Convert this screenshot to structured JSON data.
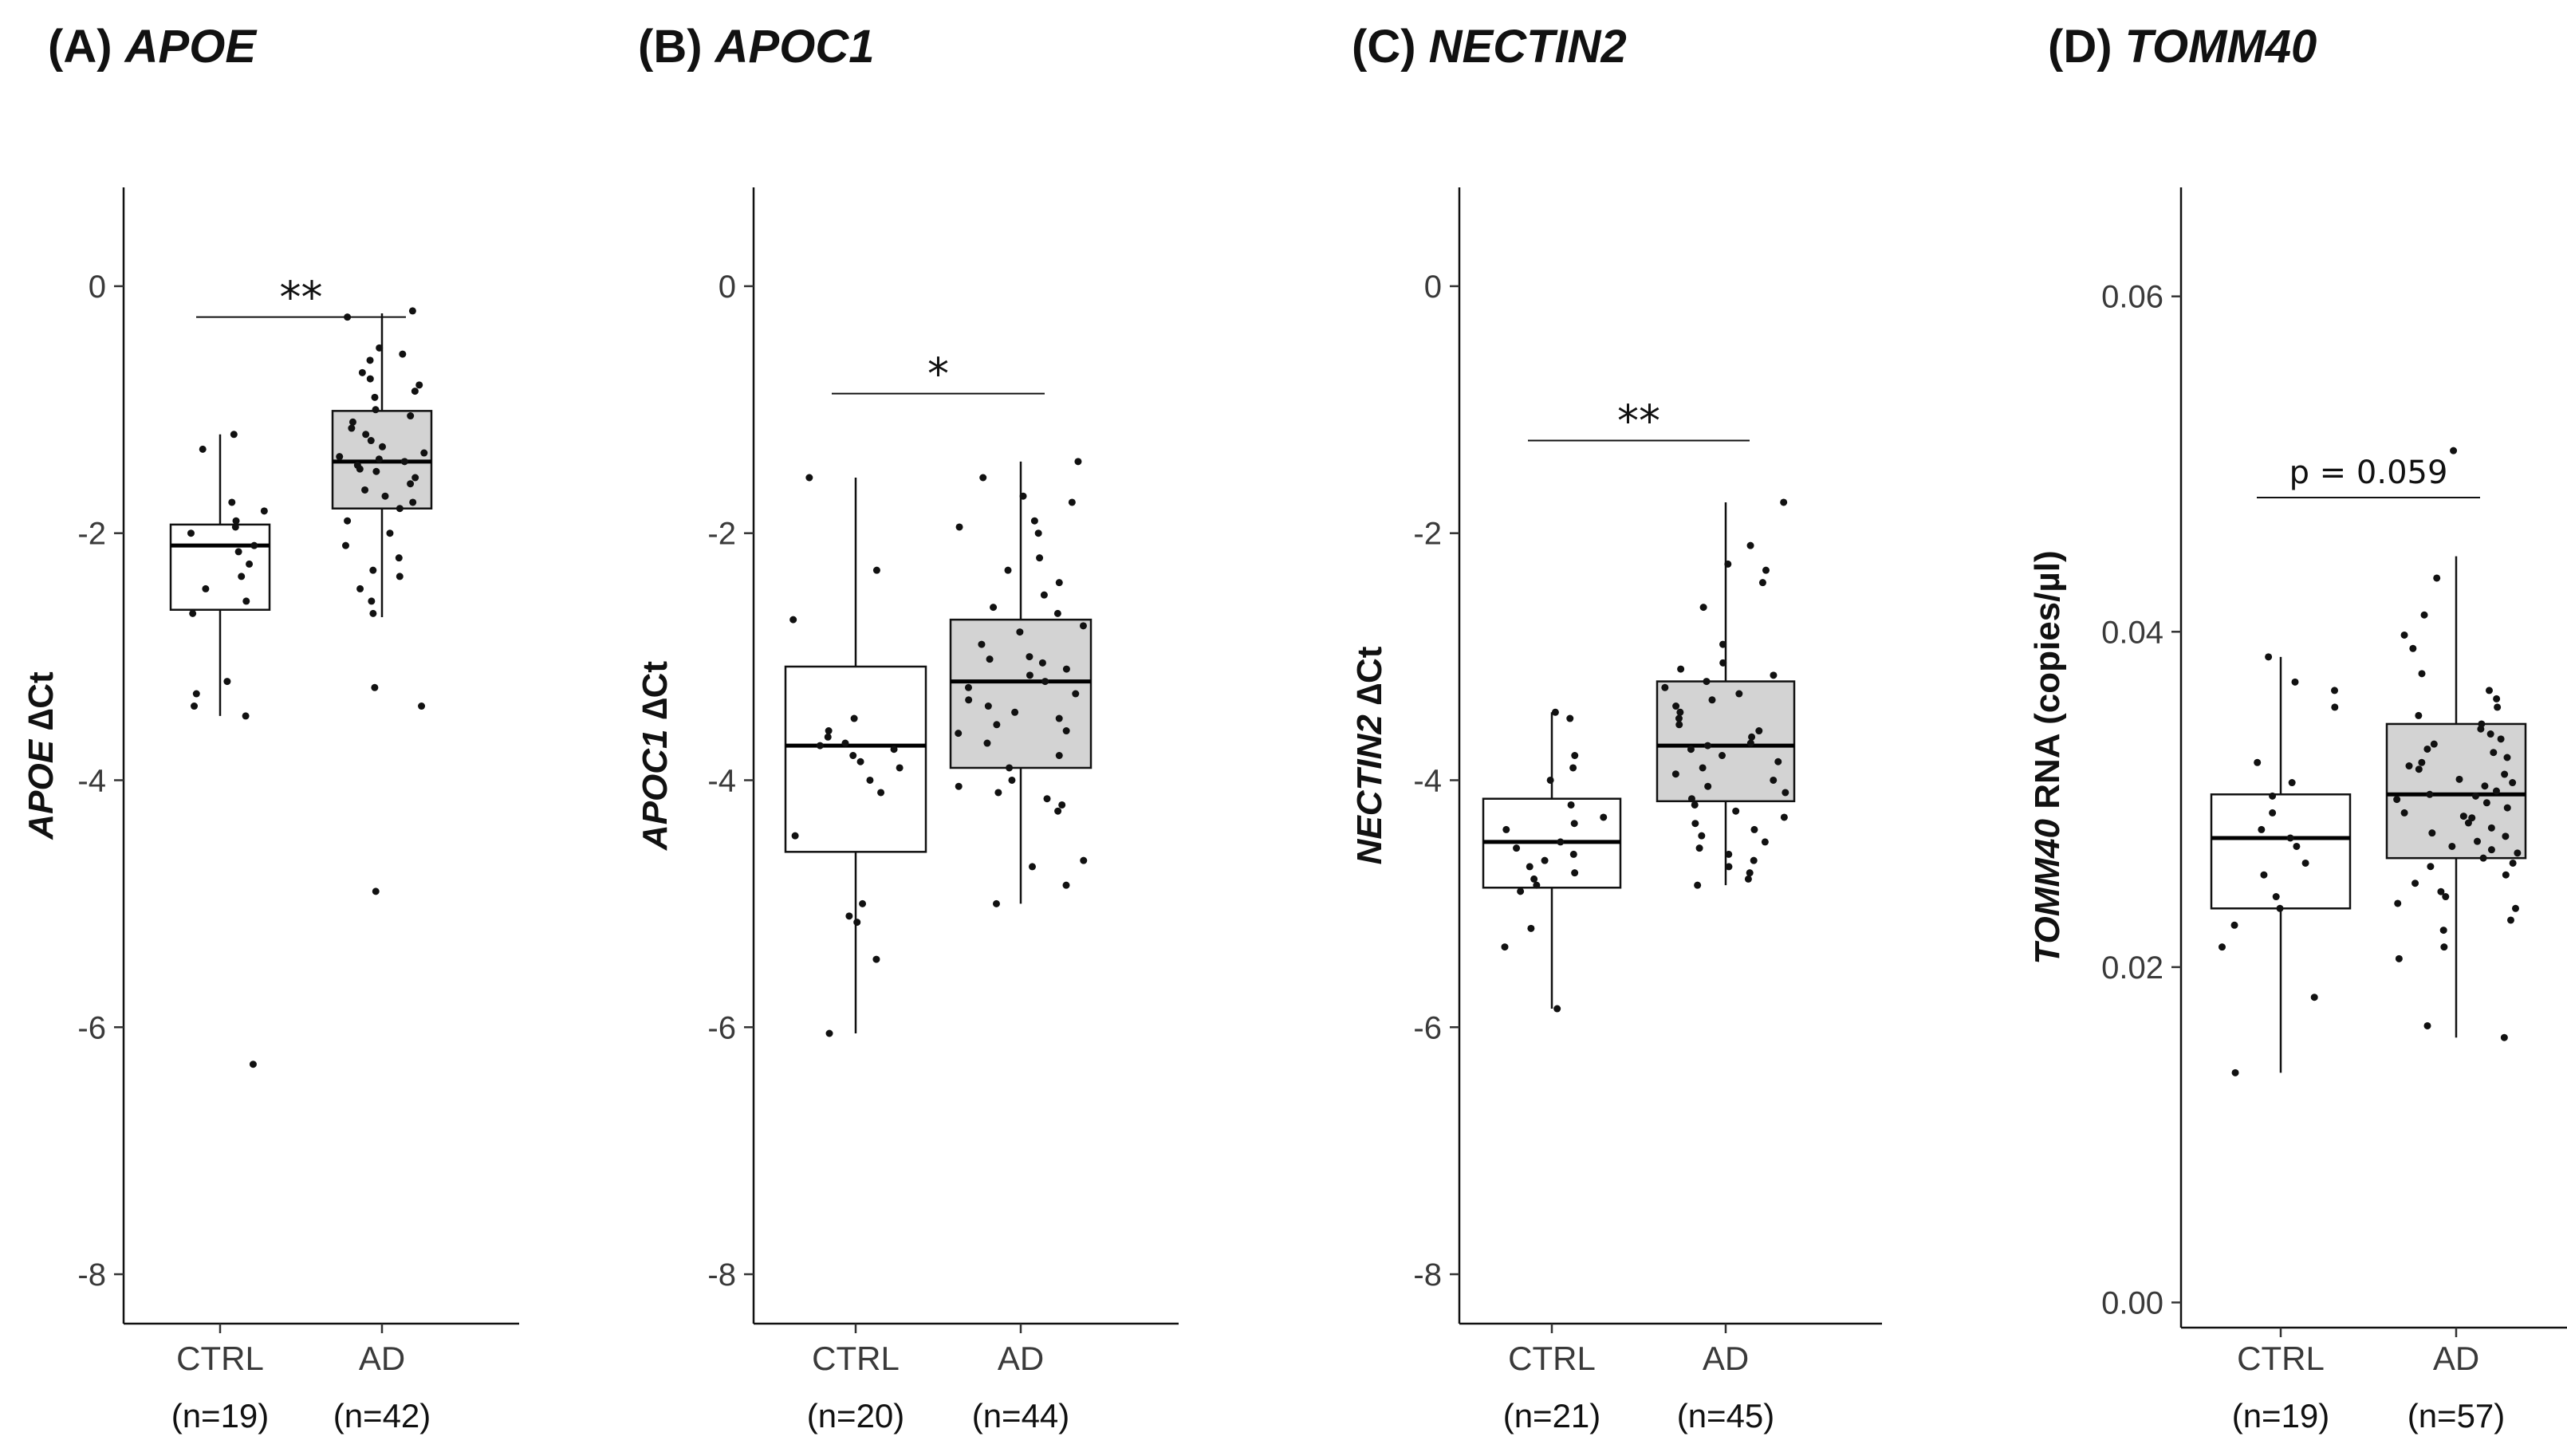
{
  "chart_data": [
    {
      "type": "box",
      "title_prefix": "(A)",
      "title_gene": "APOE",
      "ylabel_gene": "APOE",
      "ylabel_rest": " ∆Ct",
      "ylim": [
        -8.4,
        0.8
      ],
      "yticks": [
        0,
        -2,
        -4,
        -6,
        -8
      ],
      "ytick_labels": [
        "0",
        "-2",
        "-4",
        "-6",
        "-8"
      ],
      "significance": "**",
      "sig_y": -0.25,
      "groups": [
        {
          "name": "CTRL",
          "n_label": "(n=19)",
          "color": "#ffffff",
          "q1": -2.62,
          "median": -2.1,
          "q3": -1.93,
          "whisker_low": -3.48,
          "whisker_high": -1.2,
          "points": [
            -1.2,
            -1.32,
            -1.75,
            -1.82,
            -1.9,
            -1.95,
            -2.0,
            -2.1,
            -2.15,
            -2.25,
            -2.35,
            -2.45,
            -2.55,
            -2.65,
            -3.2,
            -3.3,
            -3.4,
            -3.48,
            -6.3
          ]
        },
        {
          "name": "AD",
          "n_label": "(n=42)",
          "color": "#d3d3d3",
          "q1": -1.8,
          "median": -1.42,
          "q3": -1.01,
          "whisker_low": -2.68,
          "whisker_high": -0.22,
          "points": [
            -0.2,
            -0.25,
            -0.5,
            -0.55,
            -0.6,
            -0.7,
            -0.75,
            -0.8,
            -0.85,
            -0.9,
            -1.0,
            -1.05,
            -1.1,
            -1.15,
            -1.2,
            -1.25,
            -1.3,
            -1.35,
            -1.4,
            -1.42,
            -1.45,
            -1.5,
            -1.55,
            -1.6,
            -1.65,
            -1.7,
            -1.75,
            -1.8,
            -1.9,
            -2.0,
            -2.1,
            -2.2,
            -2.3,
            -2.35,
            -2.45,
            -2.55,
            -2.65,
            -3.25,
            -3.4,
            -4.9,
            -1.38,
            -1.48
          ]
        }
      ]
    },
    {
      "type": "box",
      "title_prefix": "(B)",
      "title_gene": "APOC1",
      "ylabel_gene": "APOC1",
      "ylabel_rest": " ∆Ct",
      "ylim": [
        -8.4,
        0.8
      ],
      "yticks": [
        0,
        -2,
        -4,
        -6,
        -8
      ],
      "ytick_labels": [
        "0",
        "-2",
        "-4",
        "-6",
        "-8"
      ],
      "significance": "*",
      "sig_y": -0.87,
      "groups": [
        {
          "name": "CTRL",
          "n_label": "(n=20)",
          "color": "#ffffff",
          "q1": -4.58,
          "median": -3.72,
          "q3": -3.08,
          "whisker_low": -6.05,
          "whisker_high": -1.55,
          "points": [
            -1.55,
            -2.3,
            -2.7,
            -3.6,
            -3.65,
            -3.7,
            -3.72,
            -3.75,
            -3.8,
            -3.85,
            -3.9,
            -4.0,
            -4.1,
            -4.45,
            -5.0,
            -5.1,
            -5.15,
            -5.45,
            -6.05,
            -3.5
          ]
        },
        {
          "name": "AD",
          "n_label": "(n=44)",
          "color": "#d3d3d3",
          "q1": -3.9,
          "median": -3.2,
          "q3": -2.7,
          "whisker_low": -5.0,
          "whisker_high": -1.42,
          "points": [
            -1.42,
            -1.55,
            -1.7,
            -1.75,
            -1.9,
            -1.95,
            -2.0,
            -2.2,
            -2.3,
            -2.4,
            -2.5,
            -2.6,
            -2.65,
            -2.75,
            -2.8,
            -2.9,
            -3.0,
            -3.05,
            -3.1,
            -3.15,
            -3.2,
            -3.25,
            -3.3,
            -3.35,
            -3.4,
            -3.45,
            -3.5,
            -3.55,
            -3.6,
            -3.7,
            -3.8,
            -3.9,
            -4.0,
            -4.05,
            -4.1,
            -4.15,
            -4.2,
            -4.25,
            -4.65,
            -4.7,
            -4.85,
            -5.0,
            -3.62,
            -3.02
          ]
        }
      ]
    },
    {
      "type": "box",
      "title_prefix": "(C)",
      "title_gene": "NECTIN2",
      "ylabel_gene": "NECTIN2",
      "ylabel_rest": " ∆Ct",
      "ylim": [
        -8.4,
        0.8
      ],
      "yticks": [
        0,
        -2,
        -4,
        -6,
        -8
      ],
      "ytick_labels": [
        "0",
        "-2",
        "-4",
        "-6",
        "-8"
      ],
      "significance": "**",
      "sig_y": -1.25,
      "groups": [
        {
          "name": "CTRL",
          "n_label": "(n=21)",
          "color": "#ffffff",
          "q1": -4.87,
          "median": -4.5,
          "q3": -4.15,
          "whisker_low": -5.85,
          "whisker_high": -3.45,
          "points": [
            -3.45,
            -3.5,
            -3.8,
            -3.9,
            -4.0,
            -4.2,
            -4.3,
            -4.35,
            -4.4,
            -4.5,
            -4.55,
            -4.6,
            -4.65,
            -4.7,
            -4.75,
            -4.8,
            -4.85,
            -4.9,
            -5.2,
            -5.35,
            -5.85
          ]
        },
        {
          "name": "AD",
          "n_label": "(n=45)",
          "color": "#d3d3d3",
          "q1": -4.17,
          "median": -3.72,
          "q3": -3.2,
          "whisker_low": -4.85,
          "whisker_high": -1.75,
          "points": [
            -1.75,
            -2.1,
            -2.25,
            -2.3,
            -2.4,
            -2.6,
            -2.9,
            -3.05,
            -3.1,
            -3.15,
            -3.2,
            -3.25,
            -3.3,
            -3.35,
            -3.4,
            -3.45,
            -3.5,
            -3.55,
            -3.6,
            -3.65,
            -3.7,
            -3.72,
            -3.75,
            -3.8,
            -3.85,
            -3.9,
            -3.95,
            -4.0,
            -4.05,
            -4.1,
            -4.15,
            -4.2,
            -4.25,
            -4.3,
            -4.35,
            -4.4,
            -4.45,
            -4.5,
            -4.55,
            -4.6,
            -4.65,
            -4.7,
            -4.75,
            -4.8,
            -4.85
          ]
        }
      ]
    },
    {
      "type": "box",
      "title_prefix": "(D)",
      "title_gene": "TOMM40",
      "ylabel_gene": "TOMM40",
      "ylabel_rest": " RNA (copies/µl)",
      "ylim": [
        -0.0015,
        0.0665
      ],
      "yticks": [
        0.0,
        0.02,
        0.04,
        0.06
      ],
      "ytick_labels": [
        "0.00",
        "0.02",
        "0.04",
        "0.06"
      ],
      "significance": "p = 0.059",
      "sig_y": 0.048,
      "groups": [
        {
          "name": "CTRL",
          "n_label": "(n=19)",
          "color": "#ffffff",
          "q1": 0.0235,
          "median": 0.0277,
          "q3": 0.0303,
          "whisker_low": 0.0137,
          "whisker_high": 0.0385,
          "points": [
            0.0137,
            0.0182,
            0.0212,
            0.0225,
            0.0235,
            0.0242,
            0.0255,
            0.0262,
            0.0272,
            0.0277,
            0.0282,
            0.0292,
            0.0302,
            0.031,
            0.0322,
            0.0355,
            0.0365,
            0.037,
            0.0385
          ]
        },
        {
          "name": "AD",
          "n_label": "(n=57)",
          "color": "#d3d3d3",
          "q1": 0.0265,
          "median": 0.0303,
          "q3": 0.0345,
          "whisker_low": 0.0158,
          "whisker_high": 0.0445,
          "points": [
            0.0158,
            0.0165,
            0.0205,
            0.0212,
            0.0222,
            0.0228,
            0.0235,
            0.0238,
            0.0242,
            0.0245,
            0.025,
            0.0255,
            0.026,
            0.0262,
            0.0265,
            0.0268,
            0.027,
            0.0272,
            0.0275,
            0.0278,
            0.028,
            0.0283,
            0.0286,
            0.0289,
            0.029,
            0.0292,
            0.0295,
            0.0298,
            0.03,
            0.0302,
            0.0303,
            0.0305,
            0.0308,
            0.031,
            0.0312,
            0.0315,
            0.0318,
            0.032,
            0.0322,
            0.0325,
            0.0328,
            0.033,
            0.0333,
            0.0336,
            0.0339,
            0.0342,
            0.0345,
            0.035,
            0.0355,
            0.036,
            0.0365,
            0.0375,
            0.039,
            0.0398,
            0.041,
            0.0432,
            0.0508
          ]
        }
      ]
    }
  ]
}
